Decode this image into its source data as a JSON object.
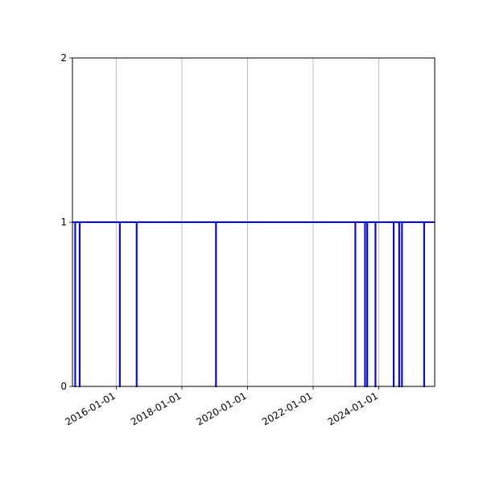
{
  "chart_data": {
    "type": "line",
    "title": "",
    "xlabel": "",
    "ylabel": "",
    "x_axis": {
      "kind": "date",
      "range": [
        "2014-09-01",
        "2025-09-15"
      ],
      "ticks": [
        "2016-01-01",
        "2018-01-01",
        "2020-01-01",
        "2022-01-01",
        "2024-01-01"
      ],
      "grid": true
    },
    "y_axis": {
      "range": [
        0,
        2
      ],
      "ticks": [
        "0",
        "1",
        "2"
      ],
      "grid": false
    },
    "series": [
      {
        "color": "#0000ff",
        "baseline": 1,
        "drop_value": 0,
        "drop_dates": [
          "2014-10-01",
          "2014-11-20",
          "2016-02-10",
          "2016-08-15",
          "2019-01-15",
          "2023-04-15",
          "2023-08-01",
          "2023-08-25",
          "2023-11-25",
          "2024-06-15",
          "2024-08-15",
          "2024-09-15",
          "2025-05-20"
        ]
      }
    ]
  }
}
